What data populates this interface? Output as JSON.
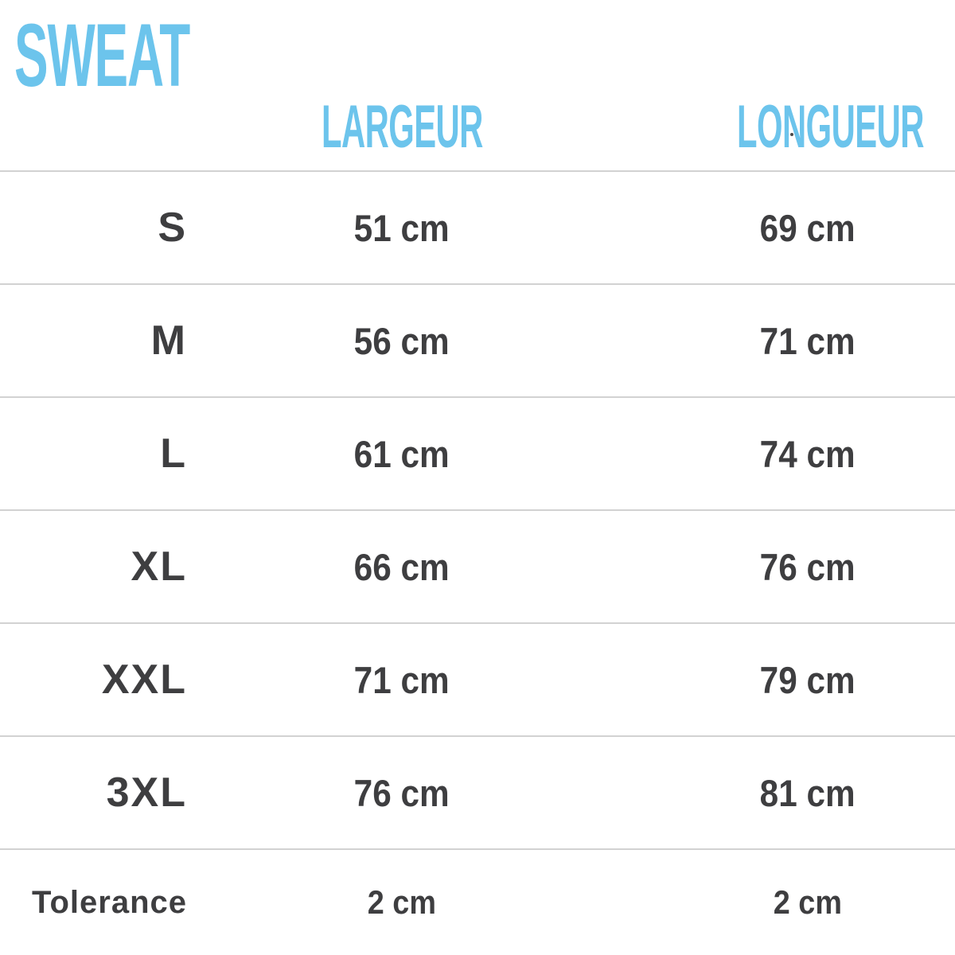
{
  "page": {
    "title": "SWEAT"
  },
  "colors": {
    "accent": "#6cc4ec",
    "text": "#3e3e40",
    "divider": "#d2d2d2"
  },
  "table": {
    "columns": {
      "largeur": "LARGEUR",
      "longueur": "LONGUEUR"
    },
    "unit": "cm",
    "rows": [
      {
        "size": "S",
        "largeur": "51 cm",
        "longueur": "69 cm"
      },
      {
        "size": "M",
        "largeur": "56 cm",
        "longueur": "71 cm"
      },
      {
        "size": "L",
        "largeur": "61 cm",
        "longueur": "74 cm"
      },
      {
        "size": "XL",
        "largeur": "66 cm",
        "longueur": "76 cm"
      },
      {
        "size": "XXL",
        "largeur": "71 cm",
        "longueur": "79 cm"
      },
      {
        "size": "3XL",
        "largeur": "76 cm",
        "longueur": "81 cm"
      },
      {
        "size": "Tolerance",
        "largeur": "2 cm",
        "longueur": "2 cm"
      }
    ]
  }
}
